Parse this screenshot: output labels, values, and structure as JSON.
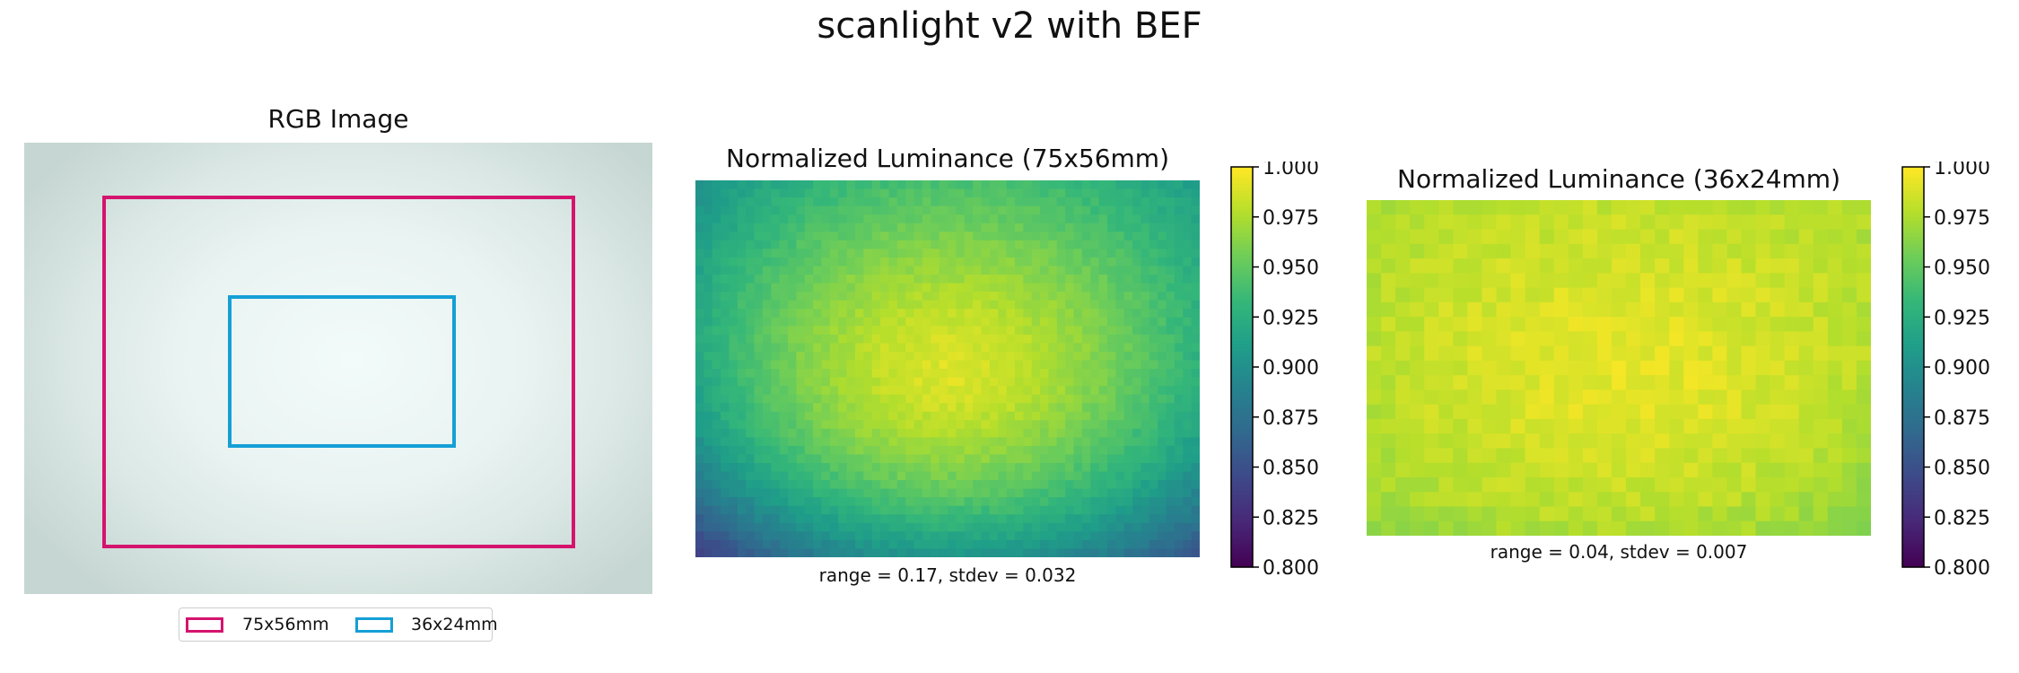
{
  "suptitle": "scanlight v2 with BEF",
  "colors": {
    "box_75x56": "#d4146e",
    "box_36x24": "#159fd6"
  },
  "rgb_panel": {
    "title": "RGB Image",
    "legend": [
      {
        "label": "75x56mm",
        "color": "#d4146e"
      },
      {
        "label": "36x24mm",
        "color": "#159fd6"
      }
    ]
  },
  "chart_data": [
    {
      "type": "heatmap",
      "title": "Normalized Luminance (75x56mm)",
      "annotation": "range = 0.17, stdev = 0.032",
      "colormap": "viridis",
      "vmin": 0.8,
      "vmax": 1.0,
      "grid": {
        "rows": 44,
        "cols": 60
      },
      "center_value": 0.99,
      "corner_values": {
        "top_left": 0.9,
        "top_right": 0.91,
        "bottom_left": 0.83,
        "bottom_right": 0.85
      },
      "colorbar_ticks": [
        "0.800",
        "0.825",
        "0.850",
        "0.875",
        "0.900",
        "0.925",
        "0.950",
        "0.975",
        "1.000"
      ]
    },
    {
      "type": "heatmap",
      "title": "Normalized Luminance (36x24mm)",
      "annotation": "range = 0.04, stdev = 0.007",
      "colormap": "viridis",
      "vmin": 0.8,
      "vmax": 1.0,
      "grid": {
        "rows": 23,
        "cols": 35
      },
      "center_value": 0.993,
      "corner_values": {
        "top_left": 0.972,
        "top_right": 0.975,
        "bottom_left": 0.965,
        "bottom_right": 0.962
      },
      "colorbar_ticks": [
        "0.800",
        "0.825",
        "0.850",
        "0.875",
        "0.900",
        "0.925",
        "0.950",
        "0.975",
        "1.000"
      ]
    }
  ]
}
